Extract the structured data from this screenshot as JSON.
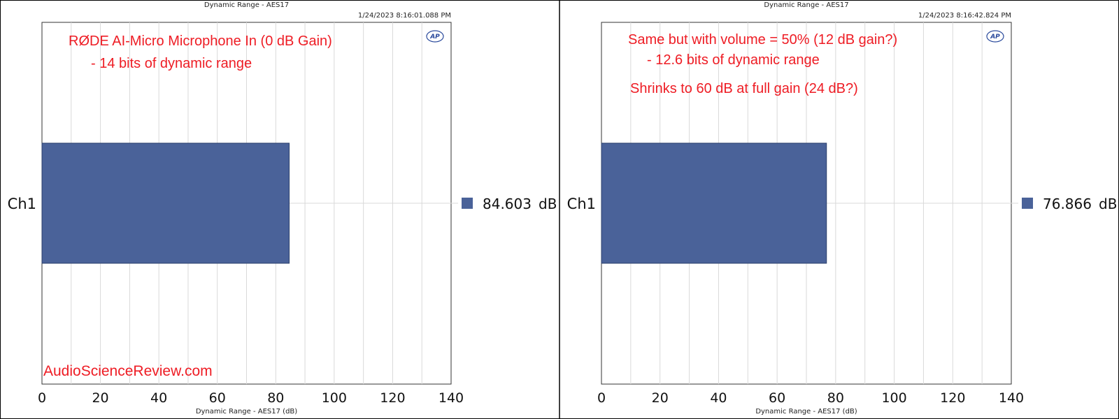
{
  "chart_data": [
    {
      "type": "bar",
      "orientation": "horizontal",
      "title": "Dynamic Range - AES17",
      "timestamp": "1/24/2023 8:16:01.088 PM",
      "xlabel": "Dynamic Range - AES17 (dB)",
      "xlim": [
        0,
        140
      ],
      "x_ticks": [
        "0",
        "20",
        "40",
        "60",
        "80",
        "100",
        "120",
        "140"
      ],
      "categories": [
        "Ch1"
      ],
      "series": [
        {
          "values": [
            84.603
          ],
          "color": "#4a6299"
        }
      ],
      "value_label": "84.603",
      "value_unit": "dB",
      "grid": true,
      "annotations": [
        "RØDE AI-Micro Microphone In (0 dB Gain)",
        "- 14 bits of dynamic range"
      ],
      "watermark": "AudioScienceReview.com",
      "logo": "AP"
    },
    {
      "type": "bar",
      "orientation": "horizontal",
      "title": "Dynamic Range - AES17",
      "timestamp": "1/24/2023 8:16:42.824 PM",
      "xlabel": "Dynamic Range - AES17 (dB)",
      "xlim": [
        0,
        140
      ],
      "x_ticks": [
        "0",
        "20",
        "40",
        "60",
        "80",
        "100",
        "120",
        "140"
      ],
      "categories": [
        "Ch1"
      ],
      "series": [
        {
          "values": [
            76.866
          ],
          "color": "#4a6299"
        }
      ],
      "value_label": "76.866",
      "value_unit": "dB",
      "grid": true,
      "annotations": [
        "Same but with volume = 50% (12 dB gain?)",
        "- 12.6 bits of dynamic range",
        "Shrinks to 60 dB at full gain (24 dB?)"
      ],
      "watermark": "",
      "logo": "AP"
    }
  ],
  "colors": {
    "accent": "#ee1c24",
    "bar": "#4a6299",
    "grid": "#d9d9d9"
  }
}
